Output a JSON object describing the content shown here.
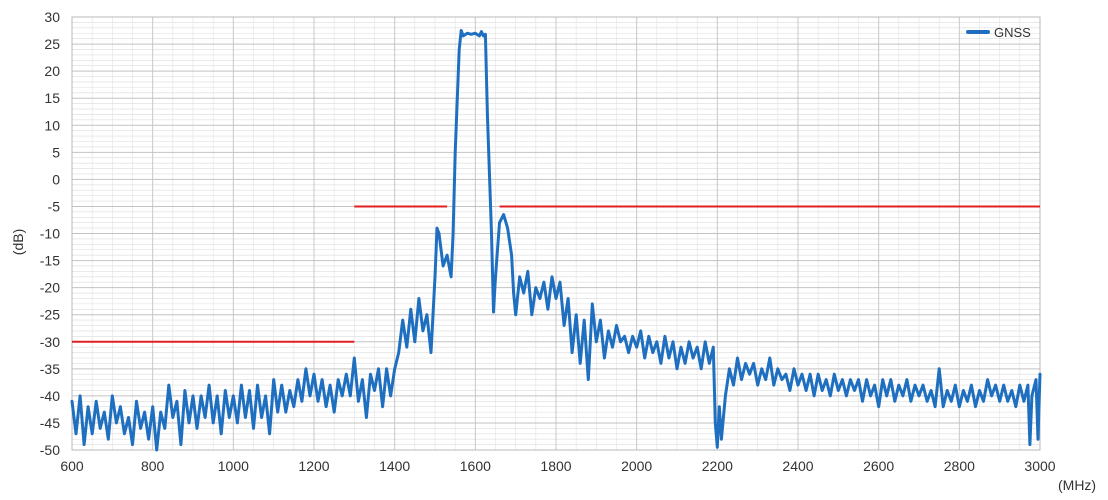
{
  "chart_data": {
    "type": "line",
    "xlabel": "(MHz)",
    "ylabel": "(dB)",
    "xlim": [
      600,
      3000
    ],
    "ylim": [
      -50,
      30
    ],
    "x_ticks": [
      600,
      800,
      1000,
      1200,
      1400,
      1600,
      1800,
      2000,
      2200,
      2400,
      2600,
      2800,
      3000
    ],
    "y_ticks": [
      30,
      25,
      20,
      15,
      10,
      5,
      0,
      -5,
      -10,
      -15,
      -20,
      -25,
      -30,
      -35,
      -40,
      -45,
      -50
    ],
    "grid": true,
    "minor_grid": true,
    "legend_position": "top-right",
    "series": [
      {
        "name": "GNSS",
        "color": "#1f6fc0",
        "points": [
          [
            600,
            -41
          ],
          [
            610,
            -47
          ],
          [
            620,
            -40
          ],
          [
            630,
            -49
          ],
          [
            640,
            -42
          ],
          [
            650,
            -47
          ],
          [
            660,
            -41
          ],
          [
            670,
            -46
          ],
          [
            680,
            -43
          ],
          [
            690,
            -48
          ],
          [
            700,
            -40
          ],
          [
            710,
            -45
          ],
          [
            720,
            -42
          ],
          [
            730,
            -47
          ],
          [
            740,
            -44
          ],
          [
            750,
            -49
          ],
          [
            760,
            -41
          ],
          [
            770,
            -46
          ],
          [
            780,
            -43
          ],
          [
            790,
            -48
          ],
          [
            800,
            -42
          ],
          [
            810,
            -50
          ],
          [
            820,
            -43
          ],
          [
            830,
            -46
          ],
          [
            840,
            -38
          ],
          [
            850,
            -44
          ],
          [
            860,
            -41
          ],
          [
            870,
            -49
          ],
          [
            880,
            -39
          ],
          [
            890,
            -45
          ],
          [
            900,
            -40
          ],
          [
            910,
            -46
          ],
          [
            920,
            -40
          ],
          [
            930,
            -44
          ],
          [
            940,
            -38
          ],
          [
            950,
            -45
          ],
          [
            960,
            -40
          ],
          [
            970,
            -47
          ],
          [
            980,
            -39
          ],
          [
            990,
            -44
          ],
          [
            1000,
            -40
          ],
          [
            1010,
            -45
          ],
          [
            1020,
            -38
          ],
          [
            1030,
            -44
          ],
          [
            1040,
            -39
          ],
          [
            1050,
            -46
          ],
          [
            1060,
            -38
          ],
          [
            1070,
            -44
          ],
          [
            1080,
            -40
          ],
          [
            1090,
            -47
          ],
          [
            1100,
            -37
          ],
          [
            1110,
            -43
          ],
          [
            1120,
            -38
          ],
          [
            1130,
            -43
          ],
          [
            1140,
            -39
          ],
          [
            1150,
            -42
          ],
          [
            1160,
            -37
          ],
          [
            1170,
            -41
          ],
          [
            1180,
            -35
          ],
          [
            1190,
            -40
          ],
          [
            1200,
            -36
          ],
          [
            1210,
            -41
          ],
          [
            1220,
            -37
          ],
          [
            1230,
            -42
          ],
          [
            1240,
            -38
          ],
          [
            1250,
            -43
          ],
          [
            1260,
            -37
          ],
          [
            1270,
            -40
          ],
          [
            1280,
            -36
          ],
          [
            1290,
            -40
          ],
          [
            1300,
            -33
          ],
          [
            1310,
            -41
          ],
          [
            1320,
            -37
          ],
          [
            1330,
            -44
          ],
          [
            1340,
            -36
          ],
          [
            1350,
            -39
          ],
          [
            1360,
            -35
          ],
          [
            1370,
            -42
          ],
          [
            1380,
            -35
          ],
          [
            1390,
            -40
          ],
          [
            1400,
            -35
          ],
          [
            1410,
            -32
          ],
          [
            1420,
            -26
          ],
          [
            1430,
            -31
          ],
          [
            1440,
            -24
          ],
          [
            1450,
            -30
          ],
          [
            1460,
            -22
          ],
          [
            1470,
            -28
          ],
          [
            1480,
            -25
          ],
          [
            1490,
            -32
          ],
          [
            1500,
            -18
          ],
          [
            1505,
            -9
          ],
          [
            1510,
            -10
          ],
          [
            1520,
            -16
          ],
          [
            1530,
            -14
          ],
          [
            1540,
            -18
          ],
          [
            1545,
            -10
          ],
          [
            1550,
            5
          ],
          [
            1560,
            24
          ],
          [
            1565,
            27.5
          ],
          [
            1570,
            26.5
          ],
          [
            1580,
            27
          ],
          [
            1590,
            26.8
          ],
          [
            1600,
            27
          ],
          [
            1610,
            26.5
          ],
          [
            1615,
            27.3
          ],
          [
            1620,
            26.5
          ],
          [
            1625,
            26.8
          ],
          [
            1630,
            12
          ],
          [
            1640,
            -10
          ],
          [
            1645,
            -24.5
          ],
          [
            1650,
            -18
          ],
          [
            1660,
            -8
          ],
          [
            1670,
            -6.5
          ],
          [
            1680,
            -9
          ],
          [
            1690,
            -14
          ],
          [
            1695,
            -21
          ],
          [
            1700,
            -25
          ],
          [
            1710,
            -18
          ],
          [
            1720,
            -21
          ],
          [
            1730,
            -17
          ],
          [
            1740,
            -25
          ],
          [
            1750,
            -20
          ],
          [
            1760,
            -22
          ],
          [
            1770,
            -19
          ],
          [
            1780,
            -24
          ],
          [
            1790,
            -18
          ],
          [
            1800,
            -22
          ],
          [
            1810,
            -19
          ],
          [
            1820,
            -27
          ],
          [
            1830,
            -22
          ],
          [
            1840,
            -32
          ],
          [
            1850,
            -25
          ],
          [
            1860,
            -34
          ],
          [
            1870,
            -26
          ],
          [
            1880,
            -37
          ],
          [
            1890,
            -23
          ],
          [
            1900,
            -30
          ],
          [
            1910,
            -26
          ],
          [
            1920,
            -33
          ],
          [
            1930,
            -28
          ],
          [
            1940,
            -31
          ],
          [
            1950,
            -27
          ],
          [
            1960,
            -30
          ],
          [
            1970,
            -29
          ],
          [
            1980,
            -32
          ],
          [
            1990,
            -29
          ],
          [
            2000,
            -31
          ],
          [
            2010,
            -28
          ],
          [
            2020,
            -33
          ],
          [
            2030,
            -29
          ],
          [
            2040,
            -32
          ],
          [
            2050,
            -30
          ],
          [
            2060,
            -34
          ],
          [
            2070,
            -29
          ],
          [
            2080,
            -33
          ],
          [
            2090,
            -30
          ],
          [
            2100,
            -35
          ],
          [
            2110,
            -31
          ],
          [
            2120,
            -34
          ],
          [
            2130,
            -30
          ],
          [
            2140,
            -33
          ],
          [
            2150,
            -31
          ],
          [
            2160,
            -35
          ],
          [
            2170,
            -30
          ],
          [
            2180,
            -34
          ],
          [
            2190,
            -31
          ],
          [
            2195,
            -45
          ],
          [
            2200,
            -49.5
          ],
          [
            2205,
            -42
          ],
          [
            2210,
            -48
          ],
          [
            2220,
            -40
          ],
          [
            2230,
            -35
          ],
          [
            2240,
            -38
          ],
          [
            2250,
            -33
          ],
          [
            2260,
            -37
          ],
          [
            2270,
            -34
          ],
          [
            2280,
            -36
          ],
          [
            2290,
            -34
          ],
          [
            2300,
            -38
          ],
          [
            2310,
            -35
          ],
          [
            2320,
            -37
          ],
          [
            2330,
            -33
          ],
          [
            2340,
            -38
          ],
          [
            2350,
            -35
          ],
          [
            2360,
            -37
          ],
          [
            2370,
            -36
          ],
          [
            2380,
            -39
          ],
          [
            2390,
            -35
          ],
          [
            2400,
            -38
          ],
          [
            2410,
            -36
          ],
          [
            2420,
            -39
          ],
          [
            2430,
            -36
          ],
          [
            2440,
            -40
          ],
          [
            2450,
            -36
          ],
          [
            2460,
            -39
          ],
          [
            2470,
            -37
          ],
          [
            2480,
            -40
          ],
          [
            2490,
            -36
          ],
          [
            2500,
            -39
          ],
          [
            2510,
            -37
          ],
          [
            2520,
            -40
          ],
          [
            2530,
            -37
          ],
          [
            2540,
            -39
          ],
          [
            2550,
            -37
          ],
          [
            2560,
            -41
          ],
          [
            2570,
            -37
          ],
          [
            2580,
            -40
          ],
          [
            2590,
            -38
          ],
          [
            2600,
            -42
          ],
          [
            2610,
            -37
          ],
          [
            2620,
            -40
          ],
          [
            2630,
            -37
          ],
          [
            2640,
            -41
          ],
          [
            2650,
            -38
          ],
          [
            2660,
            -40
          ],
          [
            2670,
            -37
          ],
          [
            2680,
            -41
          ],
          [
            2690,
            -38
          ],
          [
            2700,
            -40
          ],
          [
            2710,
            -38
          ],
          [
            2720,
            -41
          ],
          [
            2730,
            -39
          ],
          [
            2740,
            -42
          ],
          [
            2750,
            -35
          ],
          [
            2760,
            -42
          ],
          [
            2770,
            -39
          ],
          [
            2780,
            -41
          ],
          [
            2790,
            -38
          ],
          [
            2800,
            -42
          ],
          [
            2810,
            -39
          ],
          [
            2820,
            -41
          ],
          [
            2830,
            -38
          ],
          [
            2840,
            -42
          ],
          [
            2850,
            -39
          ],
          [
            2860,
            -41
          ],
          [
            2870,
            -37
          ],
          [
            2880,
            -40
          ],
          [
            2890,
            -38
          ],
          [
            2900,
            -41
          ],
          [
            2910,
            -38
          ],
          [
            2920,
            -41
          ],
          [
            2930,
            -39
          ],
          [
            2940,
            -42
          ],
          [
            2950,
            -38
          ],
          [
            2960,
            -41
          ],
          [
            2970,
            -38
          ],
          [
            2975,
            -49
          ],
          [
            2980,
            -40
          ],
          [
            2990,
            -37
          ],
          [
            2995,
            -48
          ],
          [
            3000,
            -36
          ]
        ]
      }
    ],
    "limit_lines": [
      {
        "color": "#e02020",
        "points": [
          [
            600,
            -30
          ],
          [
            1300,
            -30
          ]
        ]
      },
      {
        "color": "#e02020",
        "points": [
          [
            1300,
            -5
          ],
          [
            1530,
            -5
          ]
        ]
      },
      {
        "color": "#e02020",
        "points": [
          [
            1660,
            -5
          ],
          [
            3000,
            -5
          ]
        ]
      }
    ]
  }
}
